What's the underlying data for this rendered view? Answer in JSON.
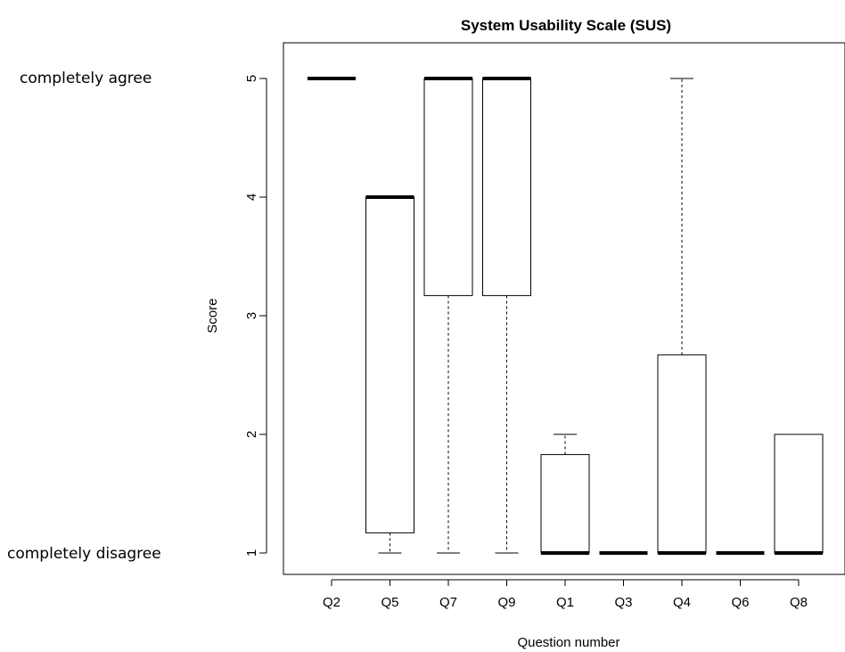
{
  "chart_data": {
    "type": "boxplot",
    "title": "System Usability Scale (SUS)",
    "xlabel": "Question number",
    "ylabel": "Score",
    "ylim": [
      1,
      5
    ],
    "yticks": [
      1,
      2,
      3,
      4,
      5
    ],
    "categories": [
      "Q2",
      "Q5",
      "Q7",
      "Q9",
      "Q1",
      "Q3",
      "Q4",
      "Q6",
      "Q8"
    ],
    "boxes": [
      {
        "label": "Q2",
        "min": 5,
        "q1": 5,
        "median": 5,
        "q3": 5,
        "max": 5
      },
      {
        "label": "Q5",
        "min": 1,
        "q1": 1.17,
        "median": 4,
        "q3": 4,
        "max": 4
      },
      {
        "label": "Q7",
        "min": 1,
        "q1": 3.17,
        "median": 5,
        "q3": 5,
        "max": 5
      },
      {
        "label": "Q9",
        "min": 1,
        "q1": 3.17,
        "median": 5,
        "q3": 5,
        "max": 5
      },
      {
        "label": "Q1",
        "min": 1,
        "q1": 1,
        "median": 1,
        "q3": 1.83,
        "max": 2
      },
      {
        "label": "Q3",
        "min": 1,
        "q1": 1,
        "median": 1,
        "q3": 1,
        "max": 1
      },
      {
        "label": "Q4",
        "min": 1,
        "q1": 1,
        "median": 1,
        "q3": 2.67,
        "max": 5
      },
      {
        "label": "Q6",
        "min": 1,
        "q1": 1,
        "median": 1,
        "q3": 1,
        "max": 1
      },
      {
        "label": "Q8",
        "min": 1,
        "q1": 1,
        "median": 1,
        "q3": 2,
        "max": 2
      }
    ],
    "annotations": {
      "top": "completely agree",
      "bottom": "completely disagree"
    }
  }
}
